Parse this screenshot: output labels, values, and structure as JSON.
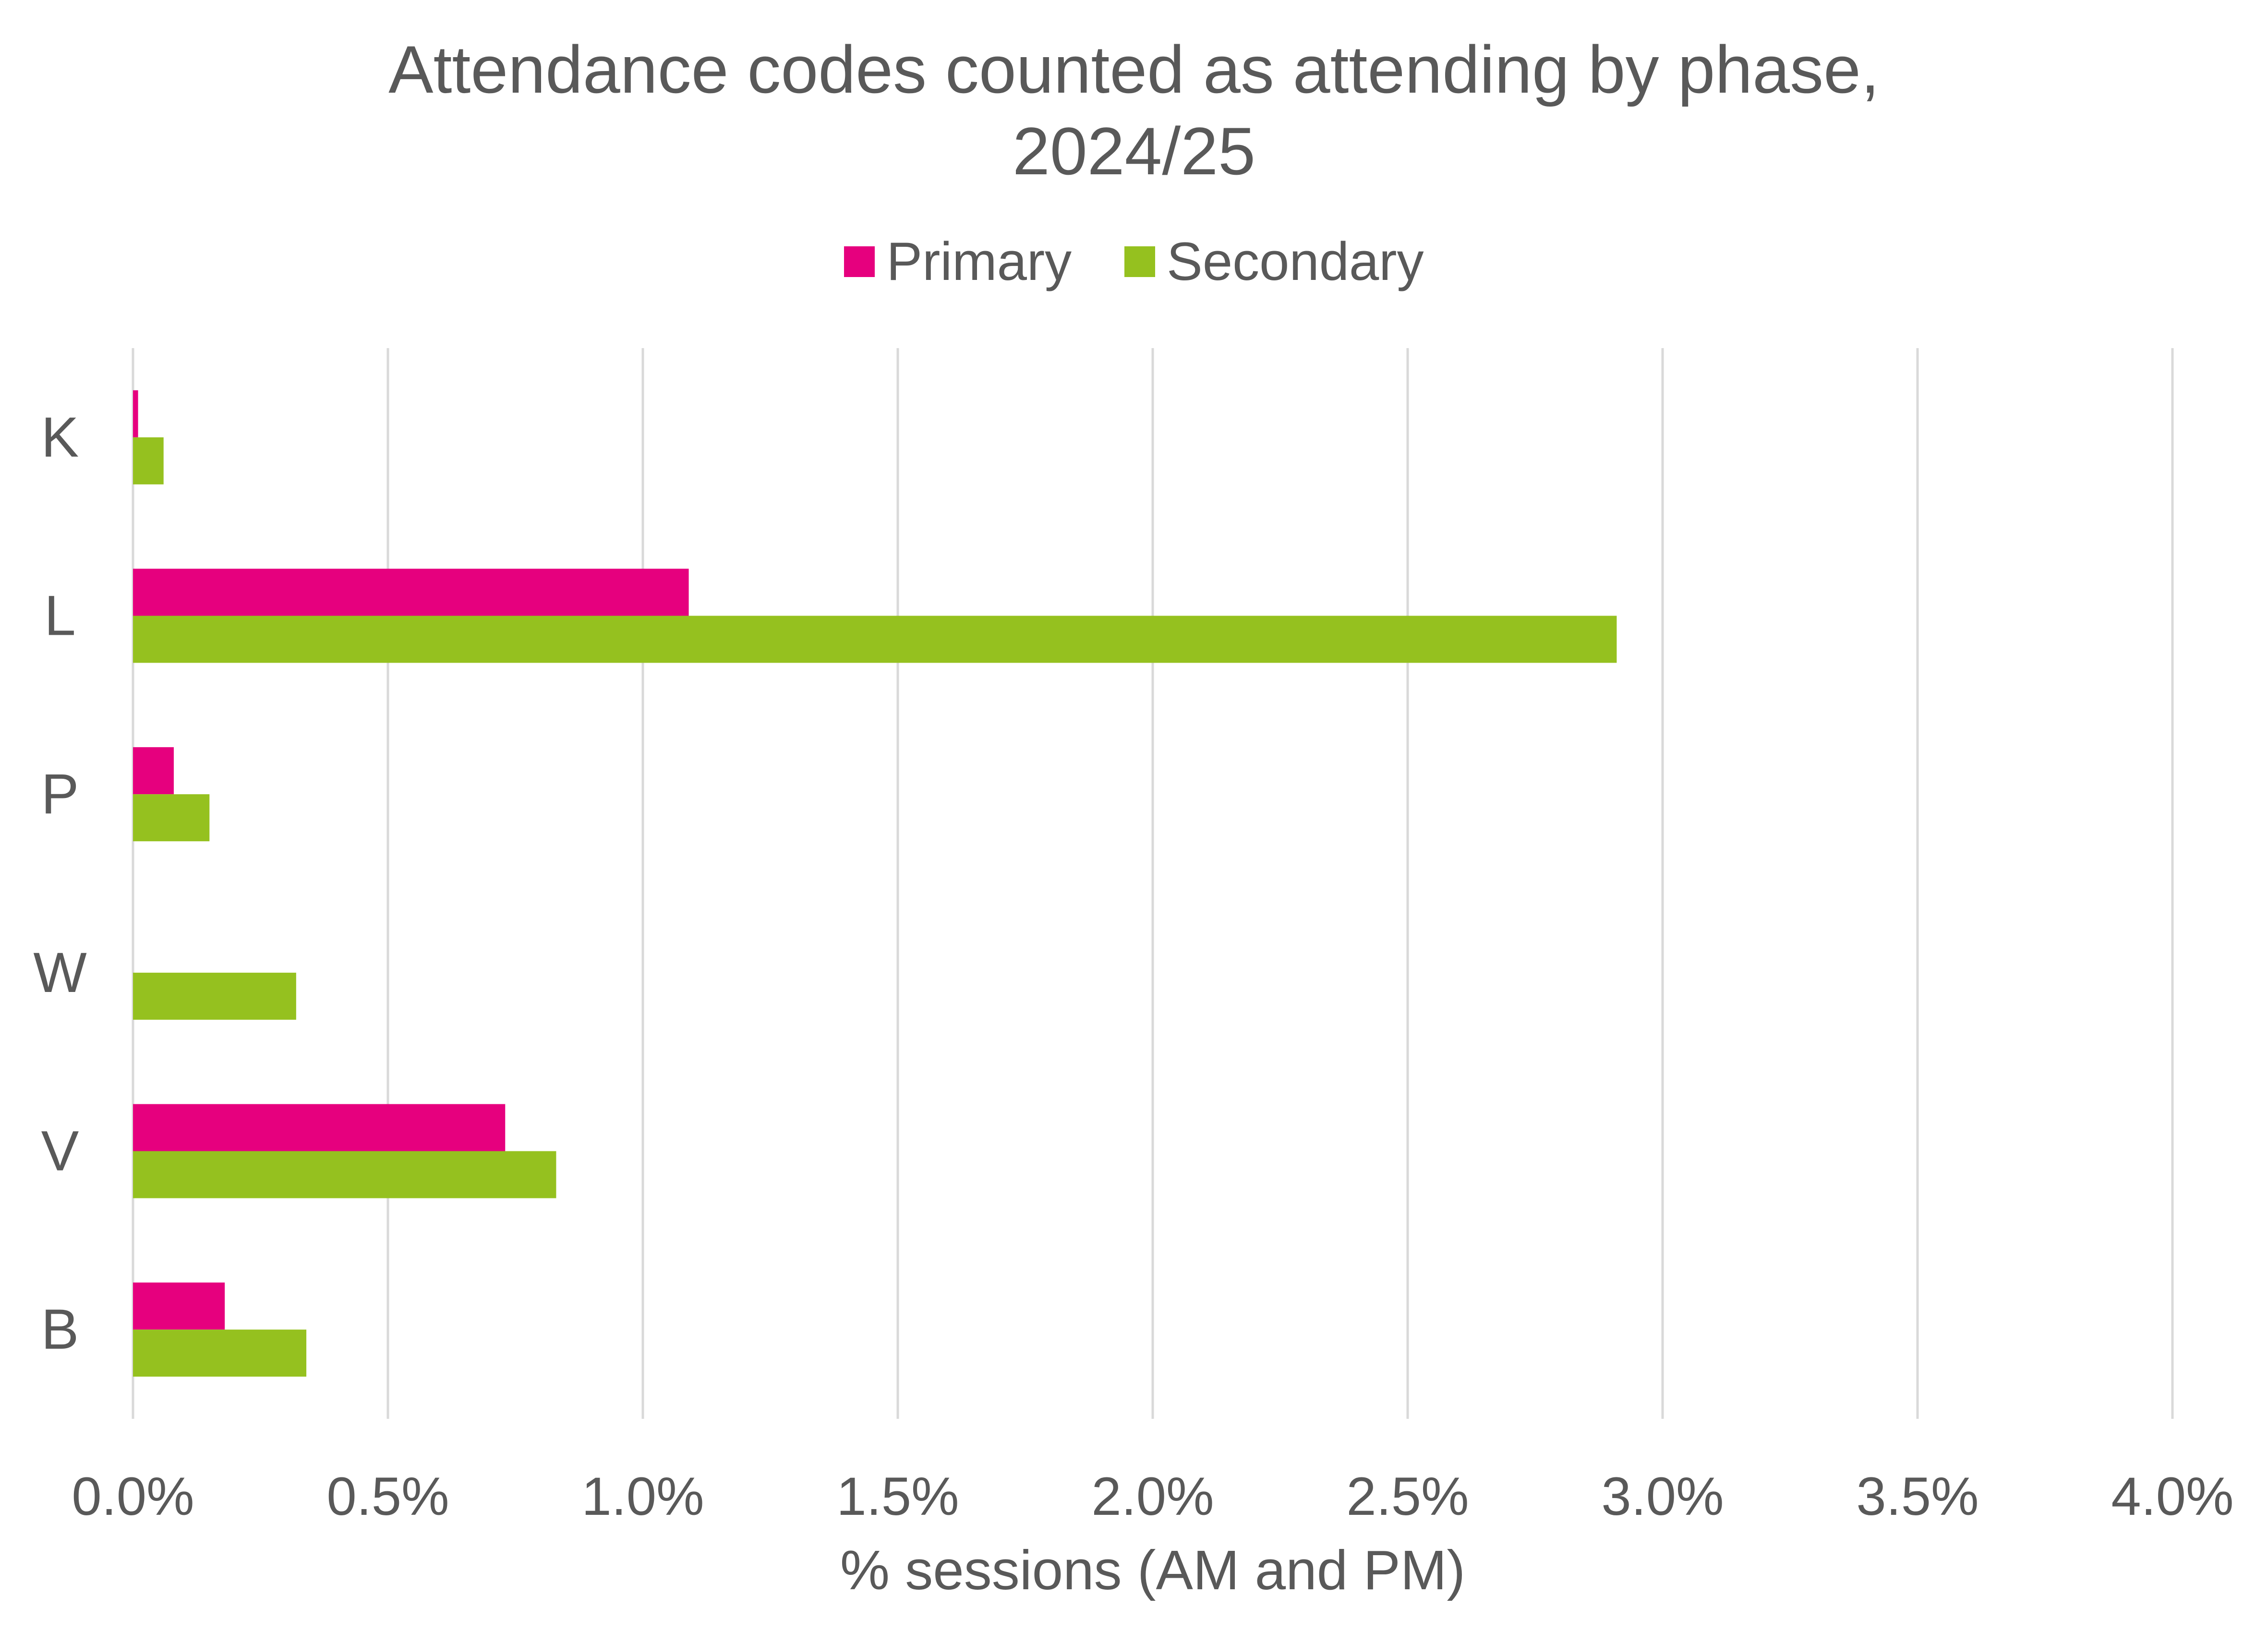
{
  "chart_data": {
    "type": "bar",
    "orientation": "horizontal",
    "title_lines": [
      "Attendance codes counted as attending by phase,",
      "2024/25"
    ],
    "categories": [
      "K",
      "L",
      "P",
      "W",
      "V",
      "B"
    ],
    "series": [
      {
        "name": "Primary",
        "color": "#E6007E",
        "values": [
          0.01,
          1.09,
          0.08,
          0.0,
          0.73,
          0.18
        ]
      },
      {
        "name": "Secondary",
        "color": "#95C11F",
        "values": [
          0.06,
          2.91,
          0.15,
          0.32,
          0.83,
          0.34
        ]
      }
    ],
    "xlabel": "% sessions (AM and PM)",
    "ylabel": "",
    "xlim": [
      0,
      4.0
    ],
    "x_ticks": [
      "0.0%",
      "0.5%",
      "1.0%",
      "1.5%",
      "2.0%",
      "2.5%",
      "3.0%",
      "3.5%",
      "4.0%"
    ],
    "grid": "vertical",
    "legend_position": "top"
  }
}
